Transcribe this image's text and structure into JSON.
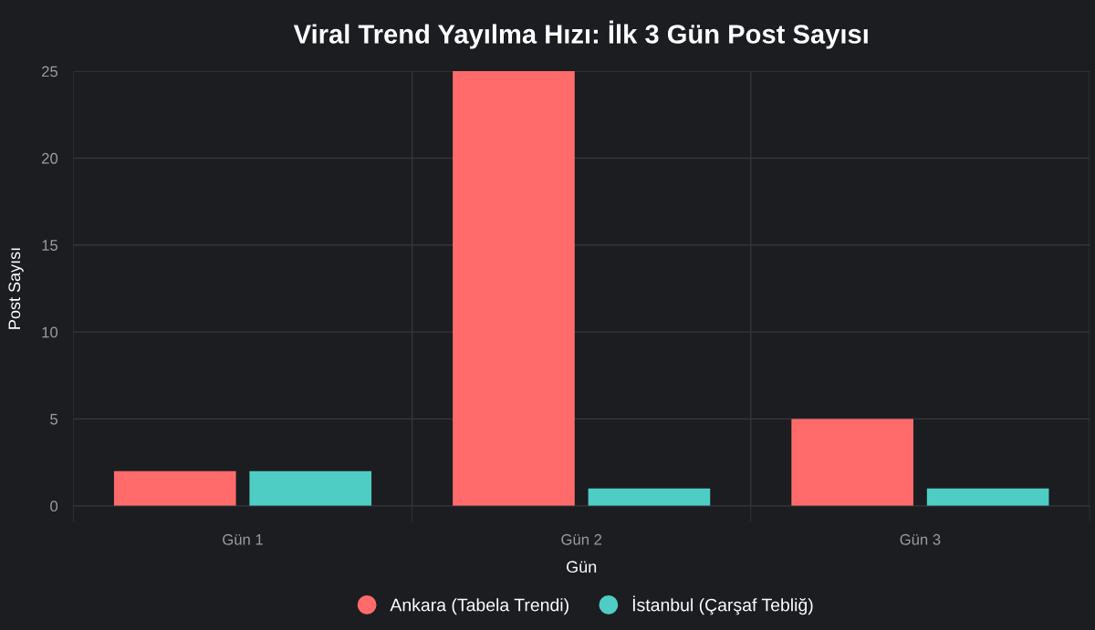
{
  "chart_data": {
    "type": "bar",
    "title": "Viral Trend Yayılma Hızı: İlk 3 Gün Post Sayısı",
    "xlabel": "Gün",
    "ylabel": "Post Sayısı",
    "categories": [
      "Gün 1",
      "Gün 2",
      "Gün 3"
    ],
    "series": [
      {
        "name": "Ankara (Tabela Trendi)",
        "color": "#ff6b6b",
        "values": [
          2,
          25,
          5
        ]
      },
      {
        "name": "İstanbul (Çarşaf Tebliğ)",
        "color": "#4ecdc4",
        "values": [
          2,
          1,
          1
        ]
      }
    ],
    "ylim": [
      0,
      25
    ],
    "yticks": [
      0,
      5,
      10,
      15,
      20,
      25
    ],
    "grid": true,
    "legend": "bottom"
  }
}
